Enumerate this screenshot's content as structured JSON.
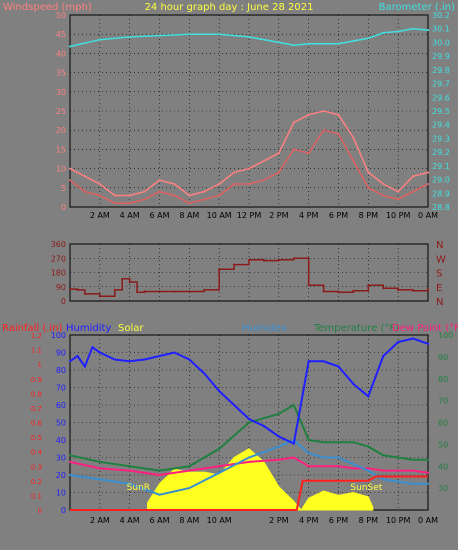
{
  "header": {
    "left_title": "Windspeed (mph)",
    "center_title": "24 hour graph day : June 28 2021",
    "right_title": "Barometer (.in)"
  },
  "colors": {
    "background": "#808080",
    "windspeed": "#ff8080",
    "windgust": "#e06060",
    "wind_avg": "#8b3a3a",
    "barometer": "#40e0e0",
    "direction": "#8b1a1a",
    "rainfall": "#ff2020",
    "humidity": "#2020ff",
    "solar": "#ffff20",
    "humidex": "#3a8fd0",
    "temperature": "#208040",
    "dewpoint": "#ff2080",
    "grid": "#000000"
  },
  "chart_data": [
    {
      "type": "line",
      "id": "wind-baro",
      "x_ticks": [
        "2 AM",
        "4 AM",
        "6 AM",
        "8 AM",
        "10 AM",
        "12 PM",
        "2 PM",
        "4 PM",
        "6 PM",
        "8 PM",
        "10 PM",
        "0 AM"
      ],
      "left_axis": {
        "label": "Windspeed (mph)",
        "ylim": [
          0,
          50
        ],
        "ticks": [
          0,
          5,
          10,
          15,
          20,
          25,
          30,
          35,
          40,
          45,
          50
        ]
      },
      "right_axis": {
        "label": "Barometer (.in)",
        "ylim": [
          28.8,
          30.2
        ],
        "ticks": [
          28.8,
          28.9,
          29.0,
          29.1,
          29.2,
          29.3,
          29.4,
          29.5,
          29.6,
          29.7,
          29.8,
          29.9,
          30.0,
          30.1,
          30.2
        ]
      },
      "series": [
        {
          "name": "Windspeed (mph)",
          "axis": "left",
          "x": [
            0,
            1,
            2,
            3,
            4,
            5,
            6,
            7,
            8,
            9,
            10,
            11,
            12,
            13,
            14,
            15,
            16,
            17,
            18,
            19,
            20,
            21,
            22,
            23,
            24
          ],
          "values": [
            7,
            4,
            3,
            1,
            1,
            2,
            4,
            3,
            1,
            2,
            3,
            6,
            6,
            7,
            9,
            15,
            14,
            20,
            19,
            12,
            5,
            3,
            2,
            4,
            6
          ]
        },
        {
          "name": "Wind Gust",
          "axis": "left",
          "x": [
            0,
            1,
            2,
            3,
            4,
            5,
            6,
            7,
            8,
            9,
            10,
            11,
            12,
            13,
            14,
            15,
            16,
            17,
            18,
            19,
            20,
            21,
            22,
            23,
            24
          ],
          "values": [
            10,
            8,
            6,
            3,
            3,
            4,
            7,
            6,
            3,
            4,
            6,
            9,
            10,
            12,
            14,
            22,
            24,
            25,
            24,
            18,
            9,
            6,
            4,
            8,
            9
          ]
        },
        {
          "name": "Barometer (.in)",
          "axis": "right",
          "x": [
            0,
            2,
            4,
            6,
            8,
            10,
            12,
            14,
            15,
            16,
            17,
            18,
            20,
            21,
            22,
            23,
            24
          ],
          "values": [
            29.97,
            30.02,
            30.04,
            30.05,
            30.06,
            30.06,
            30.04,
            30.0,
            29.98,
            29.99,
            29.99,
            29.99,
            30.03,
            30.07,
            30.08,
            30.1,
            30.09
          ]
        }
      ]
    },
    {
      "type": "line",
      "id": "direction",
      "left_axis": {
        "ylim": [
          0,
          360
        ],
        "ticks": [
          0,
          90,
          180,
          270,
          360
        ]
      },
      "right_labels": [
        "N",
        "W",
        "S",
        "E",
        "N"
      ],
      "series": [
        {
          "name": "Wind direction",
          "x": [
            0,
            0.5,
            1,
            2,
            3,
            3.5,
            4,
            4.5,
            5,
            6,
            7,
            8,
            9,
            10,
            11,
            12,
            13,
            14,
            15,
            16,
            17,
            18,
            19,
            20,
            21,
            22,
            23,
            24
          ],
          "values": [
            75,
            70,
            45,
            30,
            70,
            140,
            120,
            55,
            60,
            60,
            60,
            60,
            70,
            200,
            230,
            260,
            255,
            260,
            270,
            100,
            60,
            55,
            65,
            100,
            80,
            70,
            65,
            75
          ]
        }
      ]
    },
    {
      "type": "line",
      "id": "temp-humidity",
      "x_ticks": [
        "2 AM",
        "4 AM",
        "6 AM",
        "8 AM",
        "10 AM",
        "2 PM",
        "4 PM",
        "6 PM",
        "8 PM",
        "10 PM",
        "0 AM"
      ],
      "left_axis": {
        "ylim": [
          0,
          100
        ],
        "ticks": [
          0,
          10,
          20,
          30,
          40,
          50,
          60,
          70,
          80,
          90,
          100
        ],
        "rain_ticks": [
          0,
          0.1,
          0.2,
          0.3,
          0.4,
          0.5,
          0.6,
          0.7,
          0.8,
          0.9,
          1,
          1.1,
          1.2
        ]
      },
      "right_axis": {
        "ylim": [
          20,
          100
        ],
        "ticks": [
          30,
          40,
          50,
          60,
          70,
          80,
          90,
          100
        ]
      },
      "labels": {
        "rainfall": "Rainfall (.in)",
        "humidity": "Humidity",
        "solar": "Solar",
        "humidex": "Humidex",
        "temperature": "Temperature (°F)",
        "dewpoint": "Dew Point (°F)",
        "sunrise": "SunR",
        "sunset": "SunSet"
      },
      "series": [
        {
          "name": "Humidity",
          "x": [
            0,
            0.5,
            1,
            1.5,
            2,
            3,
            4,
            5,
            6,
            7,
            8,
            9,
            10,
            11,
            12,
            13,
            14,
            15,
            16,
            17,
            18,
            19,
            20,
            21,
            22,
            23,
            24
          ],
          "values": [
            85,
            88,
            82,
            93,
            90,
            86,
            85,
            86,
            88,
            90,
            86,
            78,
            68,
            60,
            52,
            48,
            42,
            38,
            85,
            85,
            82,
            72,
            65,
            88,
            96,
            98,
            95
          ]
        },
        {
          "name": "Humidex",
          "x": [
            0,
            2,
            4,
            6,
            8,
            10,
            12,
            14,
            15,
            16,
            17,
            18,
            19,
            20,
            21,
            22,
            23,
            24
          ],
          "values": [
            36,
            34,
            32,
            27,
            30,
            37,
            44,
            49,
            52,
            46,
            44,
            44,
            41,
            38,
            34,
            33,
            32,
            32
          ]
        },
        {
          "name": "Temperature (°F)",
          "x": [
            0,
            2,
            4,
            6,
            8,
            10,
            12,
            14,
            15,
            16,
            17,
            18,
            19,
            20,
            21,
            22,
            23,
            24
          ],
          "values": [
            45,
            42,
            40,
            38,
            40,
            48,
            60,
            64,
            68,
            52,
            51,
            51,
            51,
            49,
            45,
            44,
            43,
            43
          ]
        },
        {
          "name": "Dew Point (°F)",
          "x": [
            0,
            2,
            4,
            6,
            8,
            10,
            12,
            14,
            15,
            16,
            17,
            18,
            19,
            20,
            21,
            22,
            23,
            24
          ],
          "values": [
            42,
            39,
            38,
            36,
            38,
            40,
            42,
            43,
            44,
            40,
            40,
            40,
            39,
            39,
            38,
            38,
            38,
            37
          ]
        },
        {
          "name": "Rainfall (.in)",
          "x": [
            0,
            15.2,
            15.6,
            20,
            20.5,
            24
          ],
          "values": [
            0,
            0,
            0.2,
            0.2,
            0.23,
            0.23
          ]
        },
        {
          "name": "Solar",
          "x": [
            5.2,
            6,
            7,
            8,
            9,
            10,
            11,
            12,
            13,
            14,
            15,
            15.5
          ],
          "values": [
            0.05,
            0.18,
            0.28,
            0.26,
            0.26,
            0.24,
            0.36,
            0.42,
            0.33,
            0.16,
            0.06,
            0
          ],
          "x2": [
            15.5,
            16,
            17,
            18,
            19,
            20,
            20.3
          ],
          "values2": [
            0,
            0.08,
            0.13,
            0.1,
            0.12,
            0.09,
            0.02
          ]
        }
      ]
    }
  ]
}
